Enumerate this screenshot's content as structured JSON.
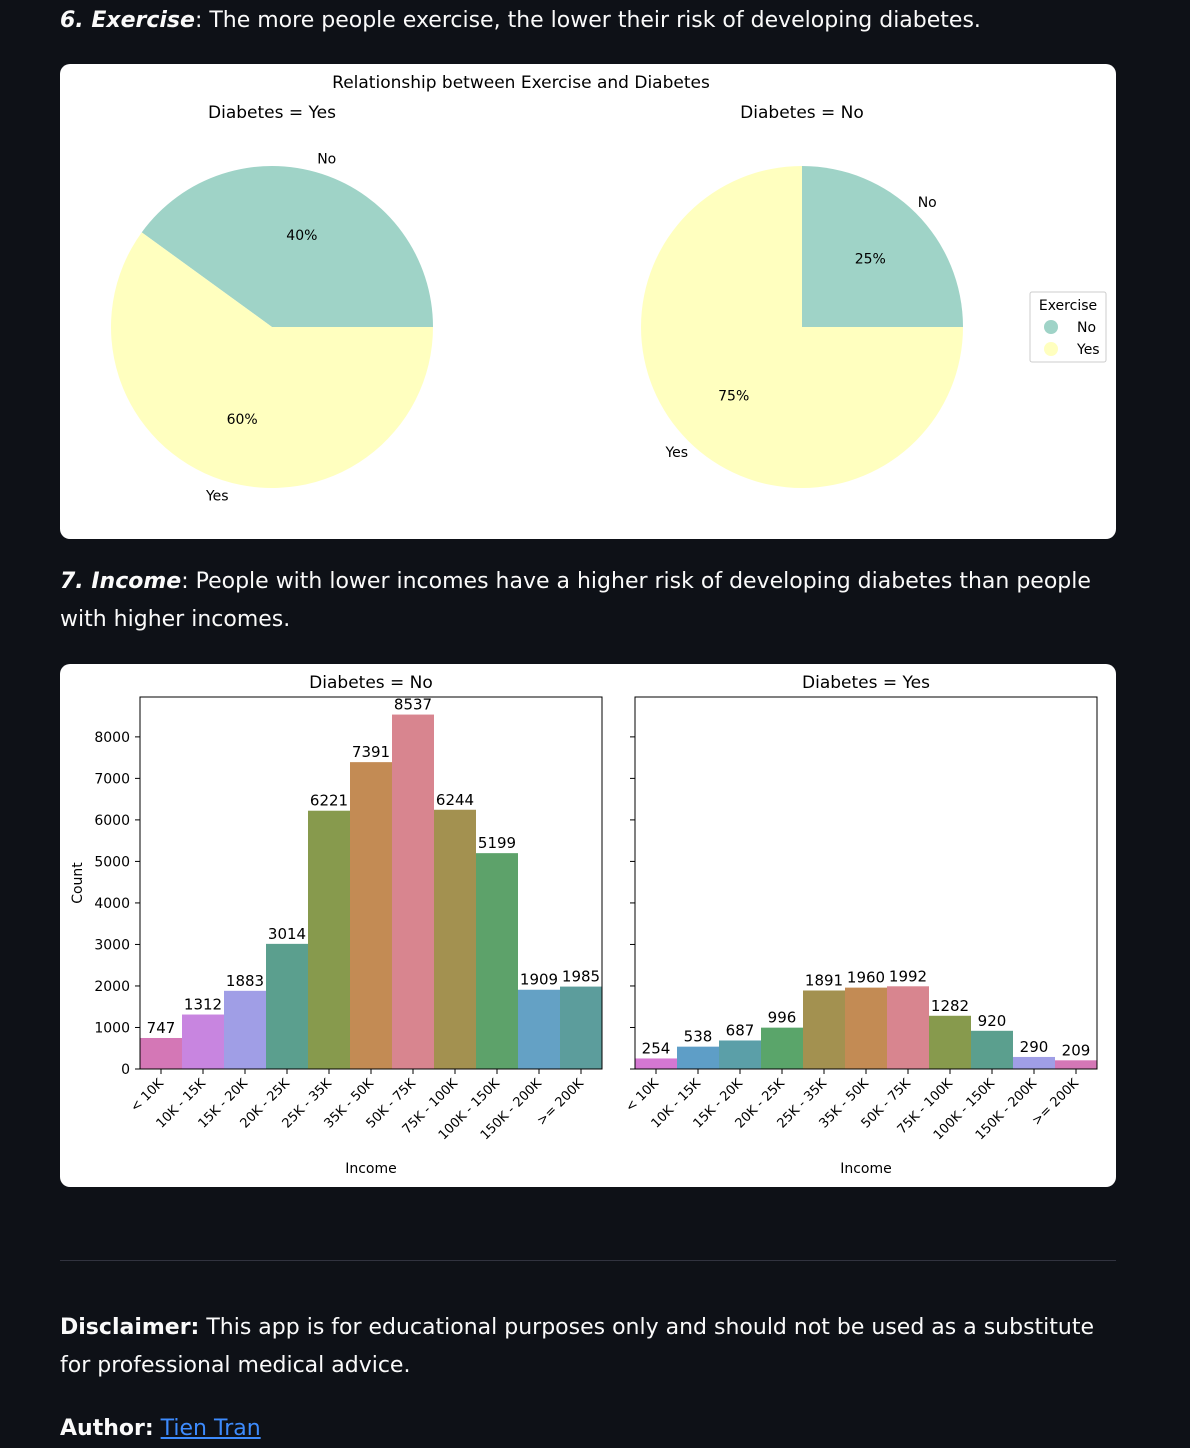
{
  "sections": {
    "exercise": {
      "number": "6.",
      "title": "Exercise",
      "text": ": The more people exercise, the lower their risk of developing diabetes."
    },
    "income": {
      "number": "7.",
      "title": "Income",
      "text": ": People with lower incomes have a higher risk of developing diabetes than people with higher incomes."
    }
  },
  "disclaimer": {
    "label": "Disclaimer:",
    "text": " This app is for educational purposes only and should not be used as a substitute for professional medical advice."
  },
  "author": {
    "label": "Author:",
    "name": "Tien Tran"
  },
  "chart_data": [
    {
      "type": "pie",
      "title": "Relationship between Exercise and Diabetes",
      "colors": {
        "No": "#9fd3c7",
        "Yes": "#ffffbf"
      },
      "legend": {
        "title": "Exercise",
        "entries": [
          "No",
          "Yes"
        ],
        "placement": "right"
      },
      "panels": [
        {
          "title": "Diabetes = Yes",
          "slices": [
            {
              "label": "No",
              "value": 40,
              "pct_label": "40%"
            },
            {
              "label": "Yes",
              "value": 60,
              "pct_label": "60%"
            }
          ]
        },
        {
          "title": "Diabetes = No",
          "slices": [
            {
              "label": "No",
              "value": 25,
              "pct_label": "25%"
            },
            {
              "label": "Yes",
              "value": 75,
              "pct_label": "75%"
            }
          ]
        }
      ]
    },
    {
      "type": "bar",
      "xlabel": "Income",
      "ylabel": "Count",
      "ylim": [
        0,
        8960
      ],
      "yticks": [
        0,
        1000,
        2000,
        3000,
        4000,
        5000,
        6000,
        7000,
        8000
      ],
      "categories": [
        "< 10K",
        "10K - 15K",
        "15K - 20K",
        "20K - 25K",
        "25K - 35K",
        "35K - 50K",
        "50K - 75K",
        "75K - 100K",
        "100K - 150K",
        "150K - 200K",
        ">= 200K"
      ],
      "panels": [
        {
          "title": "Diabetes = No",
          "values": [
            747,
            1312,
            1883,
            3014,
            6221,
            7391,
            8537,
            6244,
            5199,
            1909,
            1985
          ],
          "colors": [
            "#d477b6",
            "#c885e0",
            "#a09ee6",
            "#5b9f8e",
            "#879a4d",
            "#c38b54",
            "#d8858f",
            "#a39150",
            "#5da26a",
            "#64a1c5",
            "#5c9d9c"
          ]
        },
        {
          "title": "Diabetes = Yes",
          "values": [
            254,
            538,
            687,
            996,
            1891,
            1960,
            1992,
            1282,
            920,
            290,
            209
          ],
          "colors": [
            "#d477d2",
            "#5e9ec7",
            "#5b9fa8",
            "#5aa56a",
            "#a39150",
            "#c38b54",
            "#d8858f",
            "#879a4d",
            "#5b9f8e",
            "#a09ee6",
            "#d477b6"
          ]
        }
      ]
    }
  ]
}
